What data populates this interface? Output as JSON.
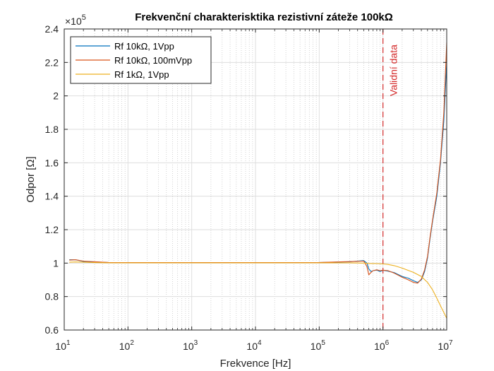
{
  "chart_data": {
    "type": "line",
    "title": "Frekvenční charakterisktika rezistivní záteže 100kΩ",
    "xlabel": "Frekvence [Hz]",
    "ylabel": "Odpor [Ω]",
    "xscale": "log",
    "xlim": [
      10,
      10000000
    ],
    "ylim": [
      60000,
      240000
    ],
    "y_multiplier_label": "×10",
    "y_multiplier_exponent": "5",
    "xticks": [
      {
        "value": 10,
        "base": "10",
        "exp": "1"
      },
      {
        "value": 100,
        "base": "10",
        "exp": "2"
      },
      {
        "value": 1000,
        "base": "10",
        "exp": "3"
      },
      {
        "value": 10000,
        "base": "10",
        "exp": "4"
      },
      {
        "value": 100000,
        "base": "10",
        "exp": "5"
      },
      {
        "value": 1000000,
        "base": "10",
        "exp": "6"
      },
      {
        "value": 10000000,
        "base": "10",
        "exp": "7"
      }
    ],
    "yticks": [
      {
        "value": 60000,
        "label": "0.6"
      },
      {
        "value": 80000,
        "label": "0.8"
      },
      {
        "value": 100000,
        "label": "1"
      },
      {
        "value": 120000,
        "label": "1.2"
      },
      {
        "value": 140000,
        "label": "1.4"
      },
      {
        "value": 160000,
        "label": "1.6"
      },
      {
        "value": 180000,
        "label": "1.8"
      },
      {
        "value": 200000,
        "label": "2"
      },
      {
        "value": 220000,
        "label": "2.2"
      },
      {
        "value": 240000,
        "label": "2.4"
      }
    ],
    "grid": true,
    "legend_position": "top-left",
    "series": [
      {
        "name": "Rf 10kΩ, 1Vpp",
        "color": "#0072BD",
        "x": [
          12,
          15,
          20,
          30,
          50,
          100,
          1000,
          10000,
          100000,
          300000,
          500000,
          560000,
          600000,
          650000,
          700000,
          800000,
          900000,
          1000000,
          1200000,
          1500000,
          2000000,
          2500000,
          3000000,
          3500000,
          4000000,
          4500000,
          5000000,
          5500000,
          6000000,
          7000000,
          8000000,
          9000000,
          10000000
        ],
        "y": [
          102000,
          102000,
          101000,
          100700,
          100300,
          100200,
          100200,
          100200,
          100300,
          100800,
          101500,
          100000,
          96500,
          95000,
          95500,
          95800,
          95000,
          95700,
          95200,
          94300,
          92000,
          91000,
          89500,
          88500,
          90000,
          95000,
          103000,
          115000,
          125000,
          140000,
          160000,
          185000,
          220000
        ]
      },
      {
        "name": "Rf 10kΩ, 100mVpp",
        "color": "#D95319",
        "x": [
          12,
          15,
          20,
          30,
          50,
          100,
          1000,
          10000,
          100000,
          300000,
          500000,
          560000,
          600000,
          650000,
          700000,
          800000,
          900000,
          1000000,
          1200000,
          1500000,
          2000000,
          2500000,
          3000000,
          3500000,
          4000000,
          4500000,
          5000000,
          5500000,
          6000000,
          7000000,
          8000000,
          9000000,
          10000000
        ],
        "y": [
          101800,
          102000,
          101200,
          100800,
          100400,
          100300,
          100300,
          100300,
          100400,
          100900,
          101200,
          98000,
          93000,
          94500,
          95500,
          96000,
          95500,
          95800,
          95500,
          94000,
          91500,
          90000,
          88500,
          88000,
          90500,
          96000,
          104000,
          116000,
          126000,
          142000,
          162000,
          190000,
          232000
        ]
      },
      {
        "name": "Rf 1kΩ, 1Vpp",
        "color": "#EDB120",
        "x": [
          12,
          15,
          20,
          30,
          50,
          100,
          1000,
          10000,
          100000,
          300000,
          500000,
          600000,
          800000,
          1000000,
          1200000,
          1500000,
          2000000,
          3000000,
          4000000,
          5000000,
          6000000,
          7000000,
          8000000,
          9000000,
          10000000
        ],
        "y": [
          100500,
          100700,
          100500,
          100300,
          100200,
          100200,
          100200,
          100200,
          100200,
          100200,
          100000,
          99800,
          99700,
          99500,
          99200,
          98500,
          97000,
          94500,
          92000,
          88500,
          84000,
          79000,
          74500,
          70500,
          67000
        ]
      }
    ],
    "annotations": [
      {
        "type": "vertical-dashed-line",
        "x": 1000000,
        "label": "Validní data",
        "color": "#D42A2A"
      }
    ]
  }
}
